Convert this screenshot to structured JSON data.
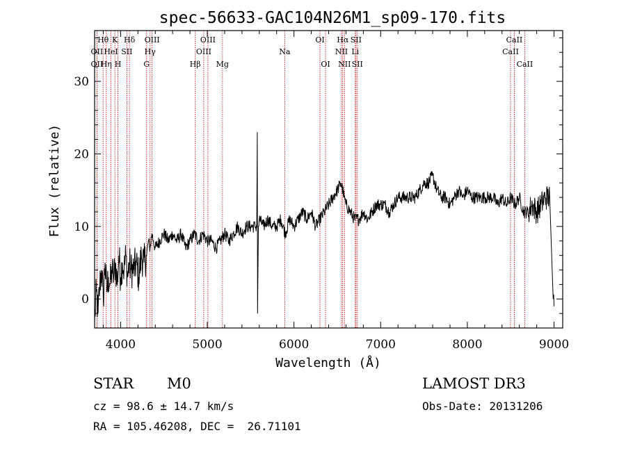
{
  "colors": {
    "axes": "#000000",
    "spectrum": "#000000",
    "line_marker": "#c00000"
  },
  "chart_data": {
    "type": "line",
    "title": "spec-56633-GAC104N26M1_sp09-170.fits",
    "xlabel": "Wavelength (Å)",
    "ylabel": "Flux (relative)",
    "xlim": [
      3700,
      9100
    ],
    "ylim": [
      -4,
      37
    ],
    "x_ticks": [
      4000,
      5000,
      6000,
      7000,
      8000,
      9000
    ],
    "y_ticks": [
      0,
      10,
      20,
      30
    ],
    "series": [
      {
        "name": "spectrum",
        "x": [
          3700,
          3720,
          3740,
          3760,
          3780,
          3800,
          3820,
          3840,
          3860,
          3880,
          3900,
          3920,
          3940,
          3960,
          3980,
          4000,
          4020,
          4040,
          4060,
          4080,
          4100,
          4120,
          4150,
          4180,
          4210,
          4240,
          4270,
          4300,
          4320,
          4340,
          4360,
          4380,
          4400,
          4450,
          4500,
          4550,
          4600,
          4650,
          4700,
          4750,
          4800,
          4850,
          4900,
          4950,
          5000,
          5050,
          5100,
          5150,
          5200,
          5250,
          5300,
          5350,
          5400,
          5450,
          5500,
          5550,
          5570,
          5577,
          5580,
          5590,
          5600,
          5650,
          5700,
          5750,
          5800,
          5850,
          5900,
          5950,
          6000,
          6050,
          6100,
          6150,
          6200,
          6250,
          6300,
          6350,
          6400,
          6450,
          6500,
          6540,
          6563,
          6580,
          6600,
          6650,
          6700,
          6750,
          6800,
          6850,
          6900,
          6950,
          7000,
          7050,
          7100,
          7150,
          7200,
          7250,
          7300,
          7350,
          7400,
          7450,
          7500,
          7550,
          7600,
          7650,
          7700,
          7750,
          7800,
          7850,
          7900,
          7950,
          8000,
          8050,
          8100,
          8150,
          8200,
          8250,
          8300,
          8350,
          8400,
          8450,
          8500,
          8550,
          8600,
          8650,
          8700,
          8750,
          8800,
          8850,
          8900,
          8950,
          8990,
          9000
        ],
        "values": [
          -3,
          1,
          -2,
          2,
          4,
          0,
          5,
          1,
          3,
          2,
          4,
          3,
          5,
          2,
          6,
          3,
          5,
          4,
          6,
          3,
          5,
          4,
          4,
          5,
          3,
          6,
          5,
          6,
          8,
          7,
          9,
          8,
          7,
          8,
          9,
          8,
          9,
          8,
          9,
          7,
          8,
          9,
          8,
          9,
          8,
          8,
          7,
          8,
          9,
          8,
          9,
          10,
          9,
          10,
          10,
          10,
          10,
          23,
          -2,
          10,
          11,
          10,
          11,
          10,
          10,
          11,
          9,
          11,
          10,
          11,
          12,
          11,
          12,
          10,
          11,
          12,
          13,
          14,
          15,
          16,
          15,
          14,
          13,
          12,
          11,
          11,
          12,
          11,
          12,
          13,
          13,
          13,
          12,
          13,
          14,
          14,
          14,
          14,
          14,
          15,
          16,
          16,
          17,
          15,
          14,
          14,
          13,
          14,
          15,
          14,
          15,
          14,
          14,
          14,
          14,
          14,
          14,
          13,
          14,
          13,
          14,
          13,
          14,
          12,
          12,
          13,
          12,
          13,
          14,
          14,
          0,
          -1
        ]
      }
    ],
    "line_markers": [
      {
        "wavelength": 3727,
        "label": "OII",
        "row": 2
      },
      {
        "wavelength": 3727,
        "label": "OII",
        "row": 3
      },
      {
        "wavelength": 3798,
        "label": "Hθ",
        "row": 1
      },
      {
        "wavelength": 3835,
        "label": "Hη",
        "row": 3
      },
      {
        "wavelength": 3889,
        "label": "HeI",
        "row": 2
      },
      {
        "wavelength": 3934,
        "label": "K",
        "row": 1
      },
      {
        "wavelength": 3969,
        "label": "H",
        "row": 3
      },
      {
        "wavelength": 4072,
        "label": "SII",
        "row": 2
      },
      {
        "wavelength": 4102,
        "label": "Hδ",
        "row": 1
      },
      {
        "wavelength": 4300,
        "label": "G",
        "row": 3
      },
      {
        "wavelength": 4340,
        "label": "Hγ",
        "row": 2
      },
      {
        "wavelength": 4363,
        "label": "OIII",
        "row": 1
      },
      {
        "wavelength": 4861,
        "label": "Hβ",
        "row": 3
      },
      {
        "wavelength": 4959,
        "label": "OIII",
        "row": 2
      },
      {
        "wavelength": 5007,
        "label": "OIII",
        "row": 1
      },
      {
        "wavelength": 5175,
        "label": "Mg",
        "row": 3
      },
      {
        "wavelength": 5893,
        "label": "Na",
        "row": 2
      },
      {
        "wavelength": 6300,
        "label": "OI",
        "row": 1
      },
      {
        "wavelength": 6364,
        "label": "OI",
        "row": 3
      },
      {
        "wavelength": 6548,
        "label": "NII",
        "row": 2
      },
      {
        "wavelength": 6563,
        "label": "Hα",
        "row": 1
      },
      {
        "wavelength": 6583,
        "label": "NII",
        "row": 3
      },
      {
        "wavelength": 6707,
        "label": "Li",
        "row": 2
      },
      {
        "wavelength": 6716,
        "label": "SII",
        "row": 1
      },
      {
        "wavelength": 6731,
        "label": "SII",
        "row": 3
      },
      {
        "wavelength": 8498,
        "label": "CaII",
        "row": 2
      },
      {
        "wavelength": 8542,
        "label": "CaII",
        "row": 1
      },
      {
        "wavelength": 8662,
        "label": "CaII",
        "row": 3
      }
    ]
  },
  "info": {
    "object_class": "STAR",
    "subclass": "M0",
    "survey": "LAMOST DR3",
    "redshift_text": "cz = 98.6 ± 14.7 km/s",
    "obs_date_text": "Obs-Date: 20131206",
    "coords_text": "RA = 105.46208, DEC =  26.71101"
  }
}
